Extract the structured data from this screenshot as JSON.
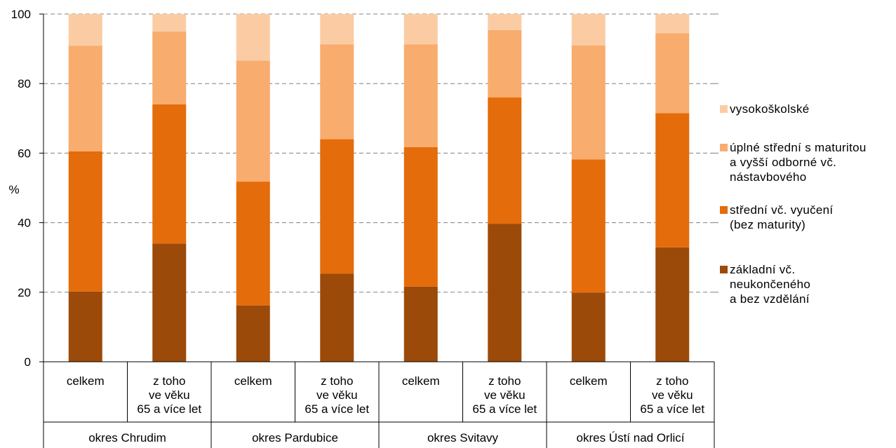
{
  "chart_data": {
    "type": "stacked-bar",
    "ylabel": "%",
    "ylim": [
      0,
      100
    ],
    "yticks": [
      0,
      20,
      40,
      60,
      80,
      100
    ],
    "grid": true,
    "legend_position": "right",
    "categories": [
      {
        "label": "celkem",
        "group": "okres Chrudim"
      },
      {
        "label": "z toho\nve věku\n65 a více let",
        "group": "okres Chrudim"
      },
      {
        "label": "celkem",
        "group": "okres Pardubice"
      },
      {
        "label": "z toho\nve věku\n65 a více let",
        "group": "okres Pardubice"
      },
      {
        "label": "celkem",
        "group": "okres Svitavy"
      },
      {
        "label": "z toho\nve věku\n65 a více let",
        "group": "okres Svitavy"
      },
      {
        "label": "celkem",
        "group": "okres Ústí nad Orlicí"
      },
      {
        "label": "z toho\nve věku\n65 a více let",
        "group": "okres Ústí nad Orlicí"
      }
    ],
    "groups": [
      "okres Chrudim",
      "okres Pardubice",
      "okres Svitavy",
      "okres Ústí nad Orlicí"
    ],
    "series": [
      {
        "name": "základní vč.\nneukončeného\na bez vzdělání",
        "color": "#9c4a09",
        "values": [
          20.2,
          34.0,
          16.2,
          25.3,
          21.6,
          39.7,
          19.9,
          32.9
        ]
      },
      {
        "name": "střední vč. vyučení\n(bez maturity)",
        "color": "#e46c0a",
        "values": [
          40.3,
          40.0,
          35.6,
          38.7,
          40.1,
          36.3,
          38.3,
          38.6
        ]
      },
      {
        "name": "úplné střední s maturitou\na vyšší odborné vč.\nnástavbového",
        "color": "#f8ac6e",
        "values": [
          30.4,
          21.0,
          34.8,
          27.3,
          29.6,
          19.4,
          32.8,
          23.0
        ]
      },
      {
        "name": "vysokoškolské",
        "color": "#fbcca3",
        "values": [
          9.1,
          5.0,
          13.4,
          8.7,
          8.7,
          4.6,
          9.0,
          5.5
        ]
      }
    ]
  }
}
